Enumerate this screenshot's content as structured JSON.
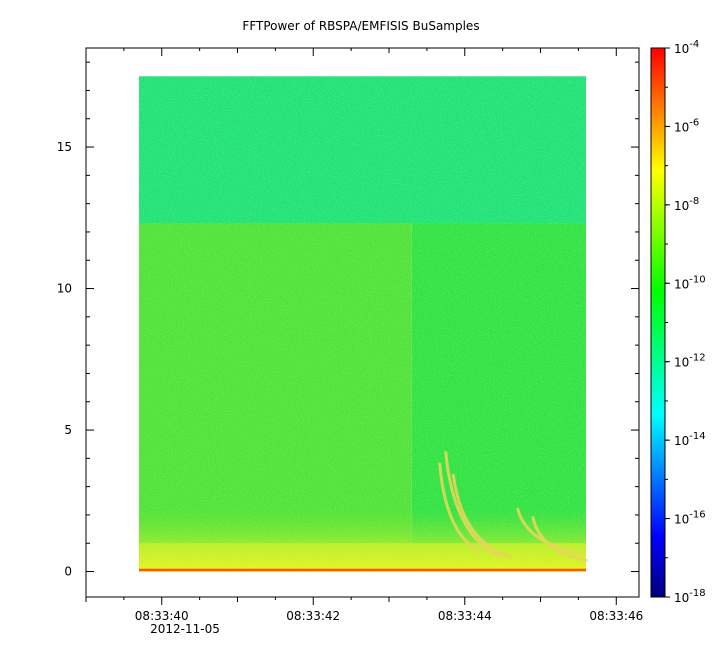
{
  "chart_data": {
    "type": "heatmap",
    "title": "FFTPower of RBSPA/EMFISIS  BuSamples",
    "xlabel": "",
    "ylabel": "",
    "x_axis": {
      "type": "time",
      "range": [
        "08:33:39",
        "08:33:46.3"
      ],
      "major_ticks": [
        "08:33:40",
        "08:33:42",
        "08:33:44",
        "08:33:46"
      ],
      "date_label": "2012-11-05",
      "data_extent": [
        "08:33:39.7",
        "08:33:45.6"
      ]
    },
    "y_axis": {
      "range": [
        -0.9,
        18.5
      ],
      "ticks": [
        0,
        5,
        10,
        15
      ],
      "data_extent": [
        0,
        17.5
      ]
    },
    "colorbar": {
      "scale": "log",
      "range": [
        "1e-18",
        "1e-4"
      ],
      "tick_bases": [
        "10",
        "10",
        "10",
        "10",
        "10",
        "10",
        "10",
        "10"
      ],
      "tick_exponents": [
        "-4",
        "-6",
        "-8",
        "-10",
        "-12",
        "-14",
        "-16",
        "-18"
      ],
      "colormap": [
        "#00007f",
        "#0000ff",
        "#007fff",
        "#00ffff",
        "#00ff7f",
        "#00ff00",
        "#7fff00",
        "#ffff00",
        "#ff7f00",
        "#ff0000"
      ]
    },
    "regions": [
      {
        "name": "upper band",
        "x": [
          "08:33:39.7",
          "08:33:45.6"
        ],
        "y": [
          12.3,
          17.5
        ],
        "level": "1e-12",
        "color": "#1de27a"
      },
      {
        "name": "lower left band",
        "x": [
          "08:33:39.7",
          "08:33:43.3"
        ],
        "y": [
          0,
          12.3
        ],
        "level": "1e-10",
        "color": "#4ee23a"
      },
      {
        "name": "lower right band",
        "x": [
          "08:33:43.3",
          "08:33:45.6"
        ],
        "y": [
          0,
          12.3
        ],
        "level": "1e-11",
        "color": "#2ee245"
      },
      {
        "name": "low frequency strip",
        "x": [
          "08:33:39.7",
          "08:33:45.6"
        ],
        "y": [
          0,
          1.0
        ],
        "level": "1e-9",
        "color": "#b6ef2a"
      },
      {
        "name": "base line",
        "x": [
          "08:33:39.7",
          "08:33:45.6"
        ],
        "y": [
          0,
          0.1
        ],
        "level": "1e-6",
        "color": "#ff5a00"
      }
    ],
    "chorus_tones": [
      {
        "x": [
          "08:33:43.67",
          "08:33:44.2"
        ],
        "y": [
          3.8,
          0.7
        ]
      },
      {
        "x": [
          "08:33:43.75",
          "08:33:44.45"
        ],
        "y": [
          4.2,
          0.55
        ]
      },
      {
        "x": [
          "08:33:43.85",
          "08:33:44.6"
        ],
        "y": [
          3.4,
          0.5
        ]
      },
      {
        "x": [
          "08:33:44.7",
          "08:33:45.55"
        ],
        "y": [
          2.2,
          0.65
        ]
      },
      {
        "x": [
          "08:33:44.9",
          "08:33:45.6"
        ],
        "y": [
          1.9,
          0.4
        ]
      }
    ]
  }
}
